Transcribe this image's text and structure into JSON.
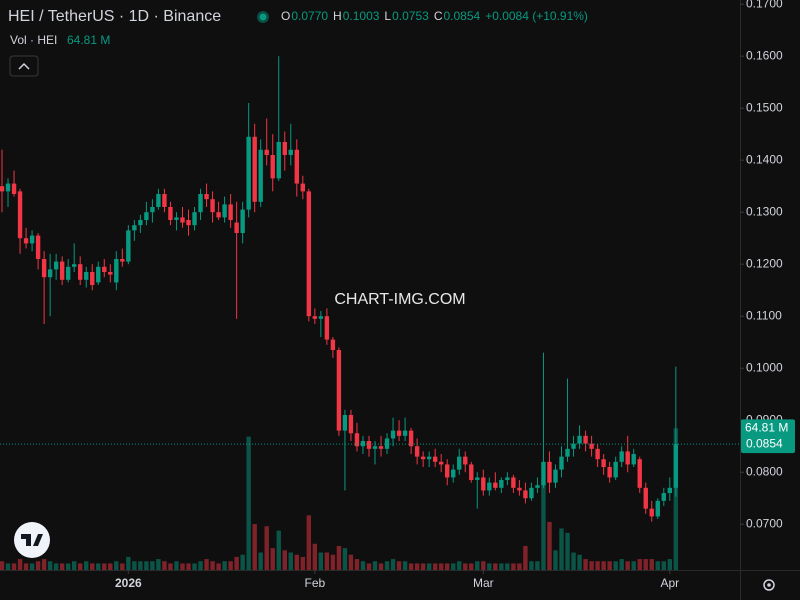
{
  "chart_data": {
    "type": "candlestick",
    "title": "HEI / TetherUS · 1D · Binance",
    "ohlc_legend": [
      {
        "key": "O",
        "value": "0.0770"
      },
      {
        "key": "H",
        "value": "0.1003"
      },
      {
        "key": "L",
        "value": "0.0753"
      },
      {
        "key": "C",
        "value": "0.0854"
      }
    ],
    "change": "+0.0084 (+10.91%)",
    "volume_legend": {
      "name": "Vol · HEI",
      "value": "64.81 M"
    },
    "watermark": "CHART-IMG.COM",
    "up_color": "#089981",
    "down_color": "#f23645",
    "ylim": [
      0.0612,
      0.1708
    ],
    "yticks": [
      {
        "value": 0.17,
        "label": "0.1700"
      },
      {
        "value": 0.16,
        "label": "0.1600"
      },
      {
        "value": 0.15,
        "label": "0.1500"
      },
      {
        "value": 0.14,
        "label": "0.1400"
      },
      {
        "value": 0.13,
        "label": "0.1300"
      },
      {
        "value": 0.12,
        "label": "0.1200"
      },
      {
        "value": 0.11,
        "label": "0.1100"
      },
      {
        "value": 0.1,
        "label": "0.1000"
      },
      {
        "value": 0.09,
        "label": "0.0900"
      },
      {
        "value": 0.08,
        "label": "0.0800"
      },
      {
        "value": 0.07,
        "label": "0.0700"
      }
    ],
    "volume_lim": [
      0,
      70
    ],
    "xlim": [
      0,
      123
    ],
    "xticks": [
      {
        "value": 21,
        "label": "2026"
      },
      {
        "value": 52,
        "label": "Feb"
      },
      {
        "value": 80,
        "label": "Mar"
      },
      {
        "value": 111,
        "label": "Apr"
      }
    ],
    "last_price": 0.0854,
    "series": {
      "open": [
        0.135,
        0.134,
        0.1355,
        0.134,
        0.125,
        0.124,
        0.1255,
        0.121,
        0.1175,
        0.119,
        0.1205,
        0.117,
        0.1195,
        0.12,
        0.117,
        0.1185,
        0.1165,
        0.1195,
        0.1185,
        0.1165,
        0.121,
        0.1205,
        0.1265,
        0.1275,
        0.1285,
        0.13,
        0.131,
        0.1335,
        0.131,
        0.1285,
        0.129,
        0.1285,
        0.1275,
        0.13,
        0.1335,
        0.1325,
        0.13,
        0.129,
        0.1315,
        0.128,
        0.126,
        0.1305,
        0.1445,
        0.132,
        0.142,
        0.141,
        0.1365,
        0.1435,
        0.141,
        0.142,
        0.1355,
        0.134,
        0.11,
        0.1095,
        0.11,
        0.1055,
        0.1035,
        0.088,
        0.091,
        0.0875,
        0.085,
        0.086,
        0.0845,
        0.085,
        0.0845,
        0.0865,
        0.088,
        0.087,
        0.088,
        0.085,
        0.083,
        0.0825,
        0.083,
        0.082,
        0.0815,
        0.079,
        0.0805,
        0.083,
        0.0815,
        0.0785,
        0.079,
        0.0765,
        0.078,
        0.077,
        0.0785,
        0.079,
        0.077,
        0.0765,
        0.075,
        0.077,
        0.0775,
        0.082,
        0.078,
        0.0805,
        0.083,
        0.0845,
        0.0855,
        0.087,
        0.0855,
        0.0845,
        0.0825,
        0.081,
        0.079,
        0.082,
        0.084,
        0.0815,
        0.0825,
        0.077,
        0.073,
        0.0715,
        0.0745,
        0.076,
        0.077
      ],
      "high": [
        0.142,
        0.1365,
        0.138,
        0.1345,
        0.127,
        0.1265,
        0.126,
        0.1225,
        0.122,
        0.122,
        0.1215,
        0.121,
        0.124,
        0.1215,
        0.1195,
        0.12,
        0.1205,
        0.121,
        0.12,
        0.1225,
        0.123,
        0.1275,
        0.1285,
        0.1295,
        0.132,
        0.1325,
        0.1345,
        0.1345,
        0.132,
        0.13,
        0.131,
        0.1305,
        0.131,
        0.1345,
        0.1355,
        0.134,
        0.132,
        0.133,
        0.1335,
        0.132,
        0.132,
        0.151,
        0.147,
        0.144,
        0.148,
        0.145,
        0.16,
        0.1455,
        0.147,
        0.144,
        0.137,
        0.1345,
        0.1115,
        0.111,
        0.1115,
        0.106,
        0.104,
        0.092,
        0.092,
        0.0895,
        0.087,
        0.087,
        0.086,
        0.087,
        0.0875,
        0.0905,
        0.09,
        0.0905,
        0.0885,
        0.0865,
        0.084,
        0.084,
        0.0845,
        0.0835,
        0.0825,
        0.0815,
        0.0845,
        0.084,
        0.082,
        0.08,
        0.0805,
        0.079,
        0.08,
        0.079,
        0.08,
        0.0795,
        0.0785,
        0.078,
        0.078,
        0.079,
        0.103,
        0.084,
        0.0815,
        0.085,
        0.098,
        0.087,
        0.089,
        0.088,
        0.087,
        0.0855,
        0.0835,
        0.082,
        0.083,
        0.085,
        0.087,
        0.0845,
        0.083,
        0.078,
        0.0745,
        0.075,
        0.077,
        0.079,
        0.1003
      ],
      "low": [
        0.13,
        0.131,
        0.133,
        0.122,
        0.123,
        0.1225,
        0.119,
        0.1085,
        0.11,
        0.117,
        0.116,
        0.1165,
        0.1185,
        0.116,
        0.1155,
        0.115,
        0.116,
        0.1175,
        0.1165,
        0.115,
        0.1195,
        0.12,
        0.1245,
        0.126,
        0.1275,
        0.128,
        0.1305,
        0.13,
        0.1275,
        0.1265,
        0.127,
        0.1255,
        0.1265,
        0.1285,
        0.131,
        0.128,
        0.1285,
        0.128,
        0.127,
        0.1095,
        0.124,
        0.129,
        0.13,
        0.131,
        0.139,
        0.134,
        0.136,
        0.138,
        0.139,
        0.133,
        0.1325,
        0.109,
        0.1085,
        0.106,
        0.1045,
        0.102,
        0.087,
        0.0765,
        0.086,
        0.084,
        0.0835,
        0.083,
        0.0815,
        0.083,
        0.0835,
        0.085,
        0.086,
        0.086,
        0.0835,
        0.0815,
        0.081,
        0.081,
        0.081,
        0.08,
        0.0775,
        0.078,
        0.0795,
        0.08,
        0.078,
        0.073,
        0.0755,
        0.0755,
        0.0765,
        0.076,
        0.0775,
        0.076,
        0.0755,
        0.074,
        0.0745,
        0.076,
        0.077,
        0.076,
        0.077,
        0.079,
        0.082,
        0.083,
        0.0845,
        0.084,
        0.083,
        0.081,
        0.0795,
        0.078,
        0.0785,
        0.081,
        0.08,
        0.081,
        0.076,
        0.072,
        0.0705,
        0.071,
        0.0735,
        0.0745,
        0.0753
      ],
      "close": [
        0.134,
        0.1355,
        0.1335,
        0.125,
        0.124,
        0.1255,
        0.121,
        0.1175,
        0.119,
        0.1205,
        0.117,
        0.1195,
        0.12,
        0.117,
        0.1185,
        0.116,
        0.1195,
        0.1185,
        0.118,
        0.121,
        0.1205,
        0.1265,
        0.1275,
        0.1285,
        0.13,
        0.131,
        0.1335,
        0.131,
        0.1285,
        0.129,
        0.128,
        0.1275,
        0.13,
        0.1335,
        0.1325,
        0.13,
        0.129,
        0.1315,
        0.1285,
        0.126,
        0.1305,
        0.1445,
        0.132,
        0.142,
        0.141,
        0.1365,
        0.1435,
        0.141,
        0.142,
        0.1355,
        0.134,
        0.11,
        0.1095,
        0.11,
        0.1055,
        0.1035,
        0.088,
        0.091,
        0.0875,
        0.085,
        0.086,
        0.0845,
        0.085,
        0.0845,
        0.0865,
        0.088,
        0.087,
        0.088,
        0.085,
        0.083,
        0.0825,
        0.083,
        0.082,
        0.0815,
        0.079,
        0.0805,
        0.083,
        0.0815,
        0.0785,
        0.079,
        0.0765,
        0.078,
        0.077,
        0.0785,
        0.079,
        0.077,
        0.0765,
        0.075,
        0.077,
        0.0775,
        0.082,
        0.078,
        0.0805,
        0.083,
        0.0845,
        0.0855,
        0.087,
        0.0855,
        0.0845,
        0.0825,
        0.081,
        0.079,
        0.082,
        0.084,
        0.0815,
        0.0835,
        0.077,
        0.073,
        0.0715,
        0.0745,
        0.076,
        0.077,
        0.0854
      ],
      "volume": [
        4,
        3,
        3,
        5,
        3,
        3,
        4,
        5,
        4,
        3,
        3,
        3,
        4,
        3,
        4,
        3,
        3,
        3,
        3,
        4,
        3,
        6,
        4,
        4,
        4,
        4,
        5,
        4,
        3,
        4,
        3,
        3,
        3,
        4,
        5,
        4,
        3,
        4,
        4,
        6,
        7,
        61,
        21,
        8,
        20,
        10,
        18,
        9,
        8,
        7,
        6,
        25,
        12,
        8,
        8,
        7,
        11,
        10,
        7,
        5,
        4,
        3,
        4,
        3,
        4,
        5,
        4,
        4,
        3,
        3,
        3,
        3,
        3,
        3,
        3,
        3,
        4,
        3,
        3,
        4,
        4,
        3,
        3,
        3,
        3,
        3,
        3,
        11,
        4,
        4,
        40,
        22,
        9,
        19,
        17,
        8,
        7,
        5,
        4,
        4,
        4,
        4,
        4,
        5,
        4,
        4,
        5,
        5,
        5,
        4,
        4,
        5,
        64.81
      ]
    }
  }
}
